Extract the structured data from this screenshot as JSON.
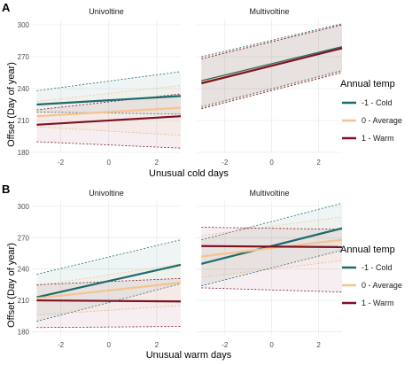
{
  "figure": {
    "ylabel": "Offset (Day of year)",
    "legend_title": "Annual temp",
    "legend_entries": [
      {
        "label": "-1 - Cold",
        "color": "#1c6b6b"
      },
      {
        "label": "0 - Average",
        "color": "#f6c38f"
      },
      {
        "label": "1 - Warm",
        "color": "#7e1024"
      }
    ]
  },
  "chart_data": [
    {
      "panel_tag": "A",
      "type": "line",
      "xlabel": "Unusual cold days",
      "ylabel": "Offset (Day of year)",
      "yticks": [
        180,
        210,
        240,
        270,
        300
      ],
      "xticks": [
        -2,
        0,
        2
      ],
      "ylim": [
        180,
        305
      ],
      "legend_title": "Annual temp",
      "facets": [
        {
          "title": "Univoltine",
          "xlim": [
            -3.2,
            3.0
          ],
          "x": [
            -3.0,
            3.0
          ],
          "series": [
            {
              "name": "-1 - Cold",
              "color": "#1c6b6b",
              "y": [
                225,
                233
              ],
              "ci_low": [
                218,
                216
              ],
              "ci_high": [
                238,
                256
              ]
            },
            {
              "name": "0 - Average",
              "color": "#f6c38f",
              "y": [
                214,
                222
              ],
              "ci_low": [
                204,
                196
              ],
              "ci_high": [
                228,
                243
              ]
            },
            {
              "name": "1 - Warm",
              "color": "#7e1024",
              "y": [
                206,
                214
              ],
              "ci_low": [
                190,
                184
              ],
              "ci_high": [
                220,
                235
              ]
            }
          ]
        },
        {
          "title": "Multivoltine",
          "xlim": [
            -3.2,
            3.0
          ],
          "x": [
            -3.0,
            3.0
          ],
          "series": [
            {
              "name": "-1 - Cold",
              "color": "#1c6b6b",
              "y": [
                247,
                279
              ],
              "ci_low": [
                223,
                257
              ],
              "ci_high": [
                270,
                301
              ]
            },
            {
              "name": "0 - Average",
              "color": "#f6c38f",
              "y": [
                246,
                278
              ],
              "ci_low": [
                222,
                256
              ],
              "ci_high": [
                269,
                300
              ]
            },
            {
              "name": "1 - Warm",
              "color": "#7e1024",
              "y": [
                245,
                278
              ],
              "ci_low": [
                221,
                255
              ],
              "ci_high": [
                268,
                300
              ]
            }
          ]
        }
      ]
    },
    {
      "panel_tag": "B",
      "type": "line",
      "xlabel": "Unusual warm days",
      "ylabel": "Offset (Day of year)",
      "yticks": [
        180,
        210,
        240,
        270,
        300
      ],
      "xticks": [
        -2,
        0,
        2
      ],
      "ylim": [
        177,
        305
      ],
      "legend_title": "Annual temp",
      "facets": [
        {
          "title": "Univoltine",
          "xlim": [
            -3.2,
            3.0
          ],
          "x": [
            -3.0,
            3.0
          ],
          "series": [
            {
              "name": "-1 - Cold",
              "color": "#1c6b6b",
              "y": [
                213,
                244
              ],
              "ci_low": [
                190,
                226
              ],
              "ci_high": [
                235,
                268
              ]
            },
            {
              "name": "0 - Average",
              "color": "#f6c38f",
              "y": [
                212,
                227
              ],
              "ci_low": [
                196,
                205
              ],
              "ci_high": [
                224,
                245
              ]
            },
            {
              "name": "1 - Warm",
              "color": "#7e1024",
              "y": [
                210,
                209
              ],
              "ci_low": [
                184,
                185
              ],
              "ci_high": [
                225,
                231
              ]
            }
          ]
        },
        {
          "title": "Multivoltine",
          "xlim": [
            -3.2,
            3.0
          ],
          "x": [
            -3.0,
            3.0
          ],
          "series": [
            {
              "name": "-1 - Cold",
              "color": "#1c6b6b",
              "y": [
                245,
                279
              ],
              "ci_low": [
                224,
                258
              ],
              "ci_high": [
                268,
                303
              ]
            },
            {
              "name": "0 - Average",
              "color": "#f6c38f",
              "y": [
                252,
                268
              ],
              "ci_low": [
                232,
                248
              ],
              "ci_high": [
                272,
                290
              ]
            },
            {
              "name": "1 - Warm",
              "color": "#7e1024",
              "y": [
                262,
                261
              ],
              "ci_low": [
                222,
                218
              ],
              "ci_high": [
                280,
                278
              ]
            }
          ]
        }
      ]
    }
  ]
}
